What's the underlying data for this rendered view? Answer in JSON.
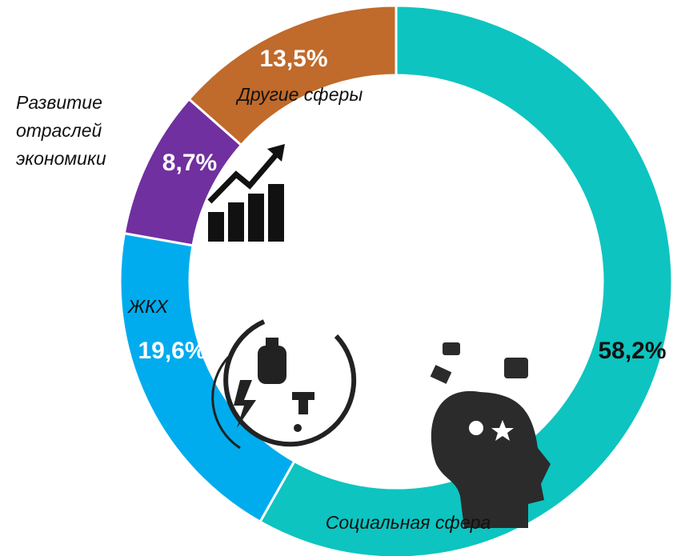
{
  "chart_data": {
    "type": "donut",
    "categories": [
      "Социальная сфера",
      "ЖКХ",
      "Развитие отраслей экономики",
      "Другие сферы"
    ],
    "values": [
      58.2,
      19.6,
      8.7,
      13.5
    ],
    "value_labels": [
      "58,2%",
      "19,6%",
      "8,7%",
      "13,5%"
    ],
    "colors": [
      "#0dc4c0",
      "#00acee",
      "#7030a0",
      "#c06a2b"
    ]
  }
}
